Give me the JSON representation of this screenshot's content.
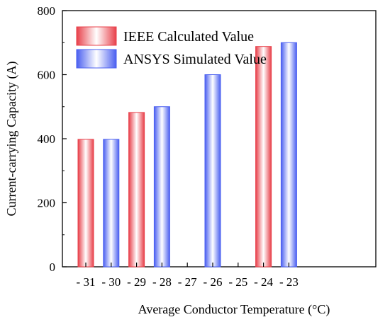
{
  "chart_data": {
    "type": "bar",
    "xlabel": "Average Conductor Temperature (°C)",
    "ylabel": "Current-carrying Capacity (A)",
    "ylim": [
      0,
      800
    ],
    "yticks": [
      0,
      200,
      400,
      600,
      800
    ],
    "categories": [
      "- 31",
      "- 30",
      "- 29",
      "- 28",
      "- 27",
      "- 26",
      "- 25",
      "- 24",
      "- 23"
    ],
    "series": [
      {
        "name": "IEEE Calculated Value",
        "color": "#e8404a",
        "values": [
          {
            "category": "- 31",
            "value": 398
          },
          {
            "category": "- 29",
            "value": 482
          },
          {
            "category": "- 26",
            "value": 598
          },
          {
            "category": "- 24",
            "value": 688
          }
        ]
      },
      {
        "name": "ANSYS Simulated Value",
        "color": "#4a5ff0",
        "values": [
          {
            "category": "- 30",
            "value": 398
          },
          {
            "category": "- 28",
            "value": 500
          },
          {
            "category": "- 26",
            "value": 600
          },
          {
            "category": "- 23",
            "value": 700
          }
        ]
      }
    ],
    "legend_position": "top-left",
    "grid": false
  }
}
